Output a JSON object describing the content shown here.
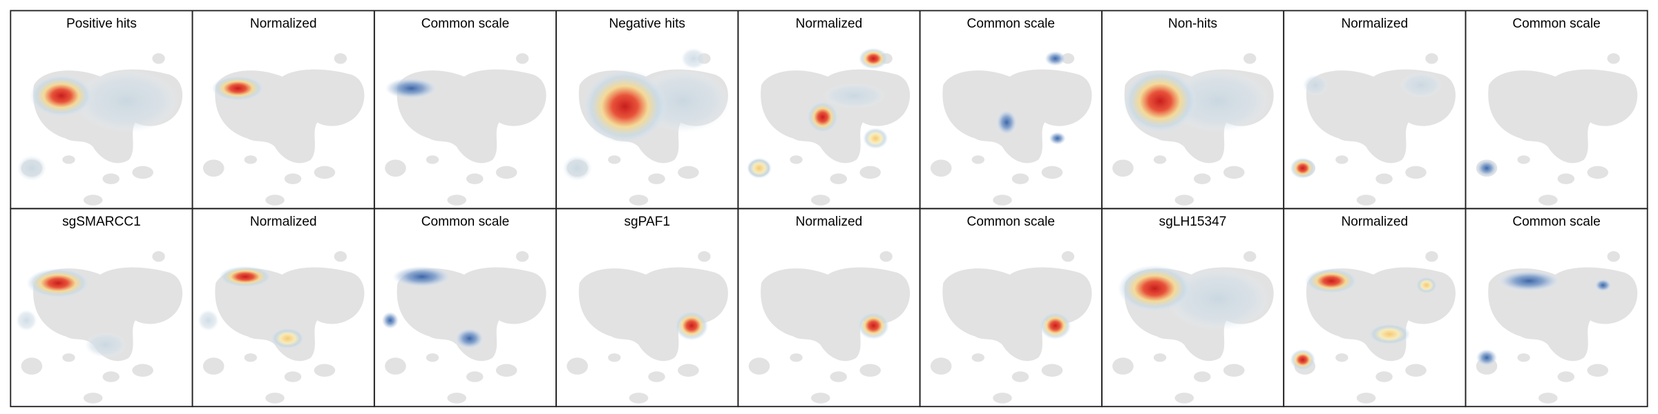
{
  "panels": [
    {
      "title": "Positive hits"
    },
    {
      "title": "Normalized"
    },
    {
      "title": "Common scale"
    },
    {
      "title": "Negative hits"
    },
    {
      "title": "Normalized"
    },
    {
      "title": "Common scale"
    },
    {
      "title": "Non-hits"
    },
    {
      "title": "Normalized"
    },
    {
      "title": "Common scale"
    },
    {
      "title": "sgSMARCC1"
    },
    {
      "title": "Normalized"
    },
    {
      "title": "Common scale"
    },
    {
      "title": "sgPAF1"
    },
    {
      "title": "Normalized"
    },
    {
      "title": "Common scale"
    },
    {
      "title": "sgLH15347"
    },
    {
      "title": "Normalized"
    },
    {
      "title": "Common scale"
    }
  ]
}
